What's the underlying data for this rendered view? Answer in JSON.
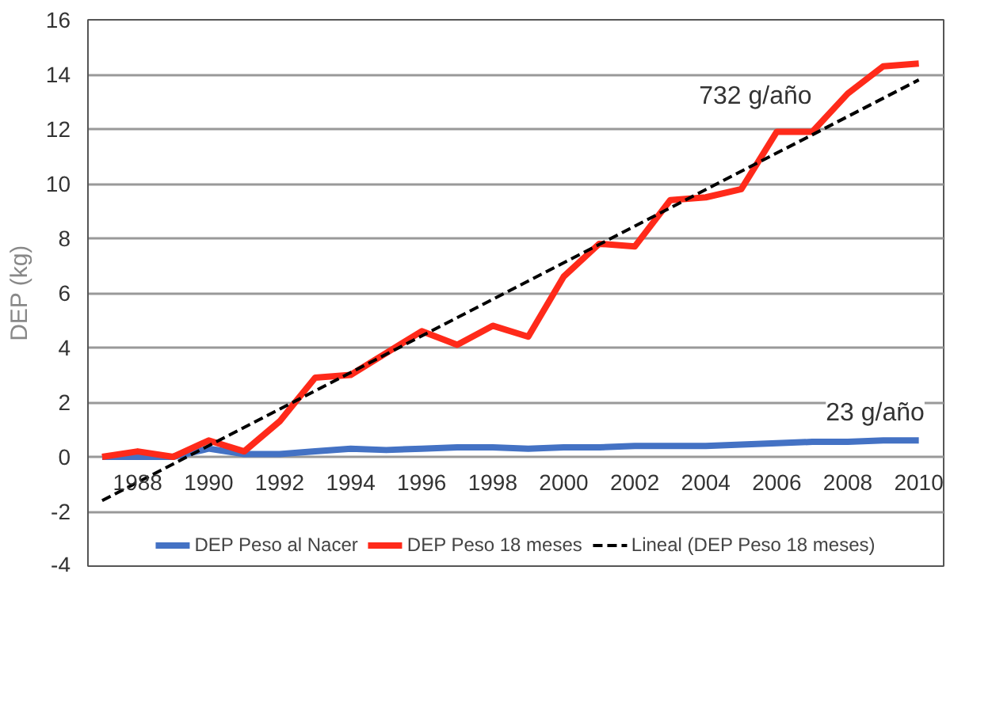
{
  "chart_data": {
    "type": "line",
    "ylabel": "DEP (kg)",
    "x": [
      1987,
      1988,
      1989,
      1990,
      1991,
      1992,
      1993,
      1994,
      1995,
      1996,
      1997,
      1998,
      1999,
      2000,
      2001,
      2002,
      2003,
      2004,
      2005,
      2006,
      2007,
      2008,
      2009,
      2010
    ],
    "series": [
      {
        "name": "DEP Peso al Nacer",
        "color": "#4472c4",
        "values": [
          0,
          0,
          0,
          0.3,
          0.1,
          0.1,
          0.2,
          0.3,
          0.25,
          0.3,
          0.35,
          0.35,
          0.3,
          0.35,
          0.35,
          0.4,
          0.4,
          0.4,
          0.45,
          0.5,
          0.55,
          0.55,
          0.6,
          0.6
        ]
      },
      {
        "name": "DEP Peso 18 meses",
        "color": "#ff2a1a",
        "values": [
          0,
          0.2,
          0,
          0.6,
          0.2,
          1.3,
          2.9,
          3.0,
          3.8,
          4.6,
          4.1,
          4.8,
          4.4,
          6.6,
          7.8,
          7.7,
          9.4,
          9.5,
          9.8,
          11.9,
          11.9,
          13.3,
          14.3,
          14.4
        ]
      },
      {
        "name": "Lineal (DEP Peso 18 meses)",
        "color": "#000000",
        "type": "line",
        "line_style": "dashed",
        "x": [
          1987,
          2010
        ],
        "values": [
          -1.6,
          13.8
        ]
      }
    ],
    "xlim": [
      1986.6,
      2010.7
    ],
    "xticks": [
      1988,
      1990,
      1992,
      1994,
      1996,
      1998,
      2000,
      2002,
      2004,
      2006,
      2008,
      2010
    ],
    "ylim": [
      -4,
      16
    ],
    "yticks": [
      -4,
      -2,
      0,
      2,
      4,
      6,
      8,
      10,
      12,
      14,
      16
    ],
    "grid": "y",
    "legend": "bottom",
    "annotations": [
      "732 g/año",
      "23 g/año"
    ]
  }
}
